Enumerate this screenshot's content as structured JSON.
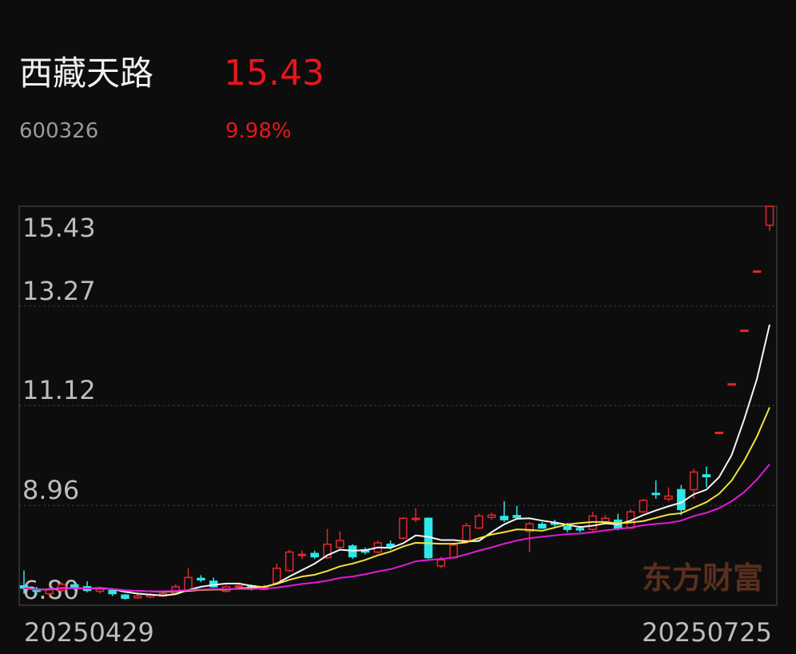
{
  "header": {
    "title": "西藏天路",
    "price": "15.43",
    "code": "600326",
    "change": "9.98%"
  },
  "chart_data": {
    "type": "candlestick",
    "categories": [
      "20250429",
      null,
      null,
      null,
      null,
      null,
      null,
      null,
      null,
      null,
      null,
      null,
      null,
      null,
      null,
      null,
      null,
      null,
      null,
      null,
      null,
      null,
      null,
      null,
      null,
      null,
      null,
      null,
      null,
      null,
      null,
      null,
      null,
      null,
      null,
      null,
      null,
      null,
      null,
      null,
      null,
      null,
      null,
      null,
      null,
      null,
      null,
      null,
      null,
      null,
      null,
      null,
      null,
      null,
      null,
      null,
      null,
      null,
      null,
      "20250725"
    ],
    "open": [
      7.22,
      7.15,
      7.05,
      7.12,
      7.24,
      7.2,
      7.1,
      7.12,
      7.02,
      6.96,
      6.98,
      7.0,
      7.06,
      7.12,
      7.38,
      7.32,
      7.1,
      7.2,
      7.22,
      7.14,
      7.28,
      7.55,
      7.88,
      7.92,
      7.83,
      8.05,
      8.08,
      8.0,
      7.95,
      8.12,
      8.25,
      8.66,
      8.68,
      7.65,
      7.83,
      8.2,
      8.47,
      8.7,
      8.72,
      8.74,
      8.4,
      8.55,
      8.58,
      8.5,
      8.46,
      8.44,
      8.6,
      8.64,
      8.47,
      8.82,
      9.22,
      9.1,
      9.3,
      9.3,
      9.62,
      10.54,
      11.59,
      12.75,
      14.03,
      15.02
    ],
    "high": [
      7.55,
      7.2,
      7.2,
      7.3,
      7.28,
      7.32,
      7.2,
      7.15,
      7.04,
      7.05,
      7.06,
      7.1,
      7.25,
      7.6,
      7.45,
      7.4,
      7.24,
      7.26,
      7.25,
      7.24,
      7.7,
      8.0,
      7.98,
      7.98,
      8.45,
      8.4,
      8.12,
      8.05,
      8.2,
      8.2,
      8.7,
      8.9,
      8.7,
      7.85,
      8.15,
      8.58,
      8.78,
      8.8,
      9.05,
      8.95,
      8.6,
      8.6,
      8.65,
      8.58,
      8.52,
      8.82,
      8.75,
      8.78,
      8.88,
      9.1,
      9.5,
      9.35,
      9.4,
      9.75,
      9.8,
      10.54,
      11.59,
      12.75,
      14.03,
      15.43
    ],
    "low": [
      7.05,
      7.02,
      6.98,
      7.08,
      7.12,
      7.08,
      7.05,
      7.0,
      6.92,
      6.94,
      6.95,
      6.98,
      7.04,
      7.1,
      7.3,
      7.18,
      7.08,
      7.15,
      7.12,
      7.12,
      7.25,
      7.52,
      7.8,
      7.8,
      7.8,
      8.0,
      7.8,
      7.9,
      7.92,
      8.0,
      8.22,
      8.6,
      7.8,
      7.6,
      7.8,
      8.15,
      8.45,
      8.65,
      8.6,
      8.65,
      7.95,
      8.45,
      8.5,
      8.38,
      8.38,
      8.4,
      8.55,
      8.42,
      8.45,
      8.8,
      9.1,
      9.05,
      8.75,
      9.1,
      9.35,
      10.54,
      11.59,
      12.75,
      14.03,
      14.9
    ],
    "close": [
      7.17,
      7.1,
      7.15,
      7.25,
      7.18,
      7.12,
      7.15,
      7.05,
      6.95,
      7.0,
      7.02,
      7.05,
      7.2,
      7.4,
      7.35,
      7.2,
      7.2,
      7.22,
      7.15,
      7.2,
      7.6,
      7.95,
      7.9,
      7.85,
      8.12,
      8.2,
      7.85,
      7.95,
      8.15,
      8.07,
      8.68,
      8.68,
      7.83,
      7.78,
      8.1,
      8.52,
      8.73,
      8.75,
      8.65,
      8.7,
      8.56,
      8.47,
      8.55,
      8.44,
      8.43,
      8.73,
      8.68,
      8.47,
      8.82,
      9.07,
      9.2,
      9.16,
      8.87,
      9.68,
      9.58,
      10.54,
      11.59,
      12.75,
      14.03,
      15.43
    ],
    "up_color": "#e8262a",
    "down_color": "#2ee8e8",
    "lines": [
      {
        "color": "#f4f4f4",
        "values": [
          7.17,
          7.14,
          7.14,
          7.17,
          7.17,
          7.16,
          7.17,
          7.15,
          7.09,
          7.05,
          7.03,
          7.01,
          7.04,
          7.13,
          7.2,
          7.24,
          7.27,
          7.27,
          7.22,
          7.19,
          7.27,
          7.42,
          7.56,
          7.7,
          7.88,
          8.0,
          7.98,
          7.99,
          8.05,
          8.04,
          8.14,
          8.31,
          8.28,
          8.21,
          8.21,
          8.18,
          8.19,
          8.38,
          8.55,
          8.67,
          8.68,
          8.63,
          8.59,
          8.54,
          8.49,
          8.52,
          8.57,
          8.55,
          8.63,
          8.75,
          8.85,
          8.94,
          9.02,
          9.2,
          9.3,
          9.57,
          10.05,
          10.83,
          11.7,
          12.87
        ]
      },
      {
        "color": "#f2e23a",
        "values": [
          7.17,
          7.14,
          7.14,
          7.17,
          7.17,
          7.16,
          7.16,
          7.15,
          7.12,
          7.11,
          7.1,
          7.09,
          7.1,
          7.11,
          7.13,
          7.14,
          7.14,
          7.16,
          7.18,
          7.2,
          7.26,
          7.35,
          7.42,
          7.46,
          7.54,
          7.64,
          7.7,
          7.78,
          7.88,
          7.96,
          8.07,
          8.15,
          8.14,
          8.13,
          8.13,
          8.16,
          8.25,
          8.33,
          8.38,
          8.44,
          8.43,
          8.41,
          8.48,
          8.55,
          8.58,
          8.6,
          8.6,
          8.57,
          8.59,
          8.62,
          8.69,
          8.76,
          8.79,
          8.91,
          9.03,
          9.21,
          9.5,
          9.93,
          10.45,
          11.08
        ]
      },
      {
        "color": "#e21ad8",
        "values": [
          7.17,
          7.14,
          7.14,
          7.17,
          7.17,
          7.16,
          7.16,
          7.15,
          7.12,
          7.11,
          7.1,
          7.1,
          7.11,
          7.13,
          7.14,
          7.15,
          7.15,
          7.15,
          7.15,
          7.16,
          7.18,
          7.22,
          7.26,
          7.29,
          7.33,
          7.39,
          7.42,
          7.47,
          7.53,
          7.58,
          7.66,
          7.75,
          7.78,
          7.8,
          7.83,
          7.9,
          7.98,
          8.05,
          8.13,
          8.2,
          8.25,
          8.28,
          8.31,
          8.34,
          8.35,
          8.38,
          8.42,
          8.45,
          8.48,
          8.53,
          8.56,
          8.58,
          8.63,
          8.73,
          8.8,
          8.9,
          9.05,
          9.25,
          9.52,
          9.85
        ]
      }
    ],
    "ylim": [
      6.8,
      15.43
    ],
    "yticks": [
      15.43,
      13.27,
      11.12,
      8.96,
      {
        "value": 6.8,
        "label": "6.80"
      }
    ],
    "grid": true,
    "watermark": "东方财富"
  }
}
